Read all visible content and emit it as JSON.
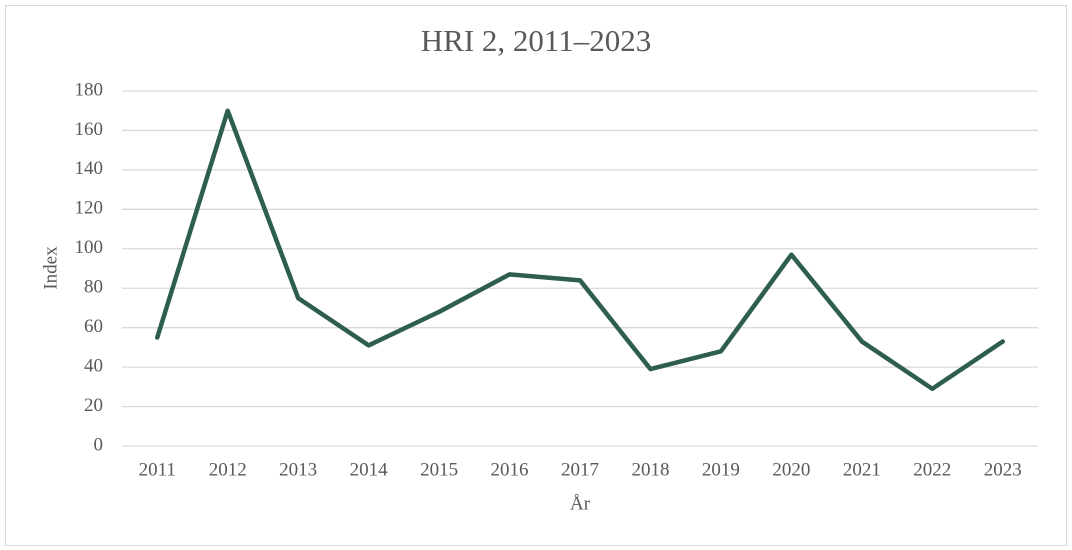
{
  "chart_data": {
    "type": "line",
    "title": "HRI 2, 2011–2023",
    "x_label": "År",
    "y_label": "Index",
    "categories": [
      "2011",
      "2012",
      "2013",
      "2014",
      "2015",
      "2016",
      "2017",
      "2018",
      "2019",
      "2020",
      "2021",
      "2022",
      "2023"
    ],
    "series": [
      {
        "name": "HRI 2",
        "color": "#2e5e4c",
        "values": [
          55,
          170,
          75,
          51,
          68,
          87,
          84,
          39,
          48,
          97,
          53,
          29,
          53
        ]
      }
    ],
    "ylim": [
      0,
      180
    ],
    "yticks": [
      0,
      20,
      40,
      60,
      80,
      100,
      120,
      140,
      160,
      180
    ],
    "grid": true
  }
}
